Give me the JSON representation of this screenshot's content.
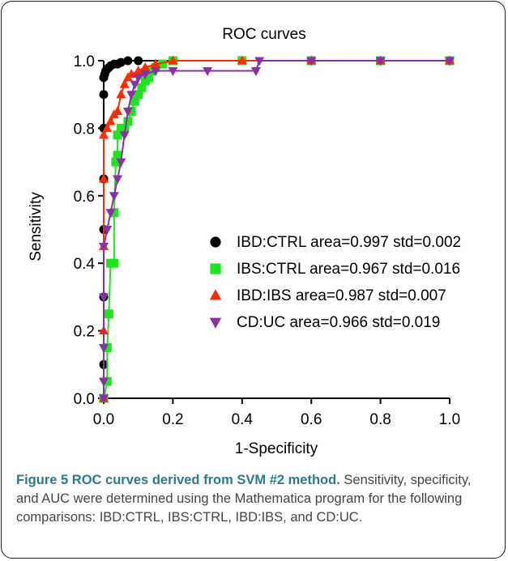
{
  "chart_data": {
    "type": "line",
    "title": "ROC curves",
    "xlabel": "1-Specificity",
    "ylabel": "Sensitivity",
    "xlim": [
      0.0,
      1.0
    ],
    "ylim": [
      0.0,
      1.0
    ],
    "xticks": [
      "0.0",
      "0.2",
      "0.4",
      "0.6",
      "0.8",
      "1.0"
    ],
    "yticks": [
      "0.0",
      "0.2",
      "0.4",
      "0.6",
      "0.8",
      "1.0"
    ],
    "grid": false,
    "legend_position": "lower-right",
    "series": [
      {
        "name": "IBD:CTRL area=0.997 std=0.002",
        "color": "#000000",
        "marker": "circle",
        "points": [
          [
            0,
            0
          ],
          [
            0,
            0.1
          ],
          [
            0,
            0.3
          ],
          [
            0,
            0.5
          ],
          [
            0,
            0.65
          ],
          [
            0,
            0.8
          ],
          [
            0,
            0.9
          ],
          [
            0,
            0.95
          ],
          [
            0.003,
            0.96
          ],
          [
            0.006,
            0.97
          ],
          [
            0.01,
            0.975
          ],
          [
            0.015,
            0.98
          ],
          [
            0.02,
            0.985
          ],
          [
            0.03,
            0.99
          ],
          [
            0.04,
            0.99
          ],
          [
            0.05,
            0.995
          ],
          [
            0.07,
            1.0
          ],
          [
            0.1,
            1.0
          ],
          [
            0.2,
            1.0
          ],
          [
            0.4,
            1.0
          ],
          [
            0.6,
            1.0
          ],
          [
            0.8,
            1.0
          ],
          [
            1.0,
            1.0
          ]
        ]
      },
      {
        "name": "IBS:CTRL area=0.967 std=0.016",
        "color": "#1ee61e",
        "marker": "square",
        "points": [
          [
            0,
            0
          ],
          [
            0.01,
            0.05
          ],
          [
            0.01,
            0.15
          ],
          [
            0.015,
            0.25
          ],
          [
            0.02,
            0.4
          ],
          [
            0.03,
            0.4
          ],
          [
            0.03,
            0.55
          ],
          [
            0.035,
            0.7
          ],
          [
            0.04,
            0.72
          ],
          [
            0.04,
            0.78
          ],
          [
            0.05,
            0.8
          ],
          [
            0.06,
            0.8
          ],
          [
            0.07,
            0.82
          ],
          [
            0.08,
            0.85
          ],
          [
            0.09,
            0.88
          ],
          [
            0.1,
            0.9
          ],
          [
            0.11,
            0.92
          ],
          [
            0.12,
            0.94
          ],
          [
            0.13,
            0.95
          ],
          [
            0.14,
            0.97
          ],
          [
            0.15,
            0.98
          ],
          [
            0.17,
            0.99
          ],
          [
            0.2,
            1.0
          ],
          [
            0.4,
            1.0
          ],
          [
            0.6,
            1.0
          ],
          [
            0.8,
            1.0
          ],
          [
            1.0,
            1.0
          ]
        ]
      },
      {
        "name": "IBD:IBS area=0.987 std=0.007",
        "color": "#ff2a00",
        "marker": "triangle-up",
        "points": [
          [
            0,
            0
          ],
          [
            0,
            0.2
          ],
          [
            0,
            0.45
          ],
          [
            0,
            0.65
          ],
          [
            0,
            0.78
          ],
          [
            0.01,
            0.8
          ],
          [
            0.02,
            0.82
          ],
          [
            0.03,
            0.84
          ],
          [
            0.04,
            0.85
          ],
          [
            0.05,
            0.9
          ],
          [
            0.06,
            0.93
          ],
          [
            0.07,
            0.95
          ],
          [
            0.08,
            0.96
          ],
          [
            0.1,
            0.97
          ],
          [
            0.12,
            0.98
          ],
          [
            0.15,
            0.99
          ],
          [
            0.2,
            1.0
          ],
          [
            0.4,
            1.0
          ],
          [
            0.6,
            1.0
          ],
          [
            0.8,
            1.0
          ],
          [
            1.0,
            1.0
          ]
        ]
      },
      {
        "name": "CD:UC area=0.966 std=0.019",
        "color": "#8b2fa8",
        "marker": "triangle-down",
        "points": [
          [
            0,
            0
          ],
          [
            0,
            0.05
          ],
          [
            0,
            0.15
          ],
          [
            0,
            0.3
          ],
          [
            0,
            0.45
          ],
          [
            0.01,
            0.5
          ],
          [
            0.02,
            0.55
          ],
          [
            0.03,
            0.6
          ],
          [
            0.04,
            0.65
          ],
          [
            0.05,
            0.7
          ],
          [
            0.06,
            0.78
          ],
          [
            0.07,
            0.85
          ],
          [
            0.08,
            0.9
          ],
          [
            0.09,
            0.93
          ],
          [
            0.1,
            0.95
          ],
          [
            0.12,
            0.96
          ],
          [
            0.15,
            0.97
          ],
          [
            0.2,
            0.97
          ],
          [
            0.3,
            0.97
          ],
          [
            0.44,
            0.97
          ],
          [
            0.45,
            1.0
          ],
          [
            0.6,
            1.0
          ],
          [
            0.8,
            1.0
          ],
          [
            1.0,
            1.0
          ]
        ]
      }
    ]
  },
  "caption": {
    "label": "Figure 5",
    "title": "ROC curves derived from SVM #2 method.",
    "text": "Sensitivity, specificity, and AUC were determined using the Mathematica program for the following comparisons: IBD:CTRL, IBS:CTRL, IBD:IBS, and CD:UC."
  }
}
